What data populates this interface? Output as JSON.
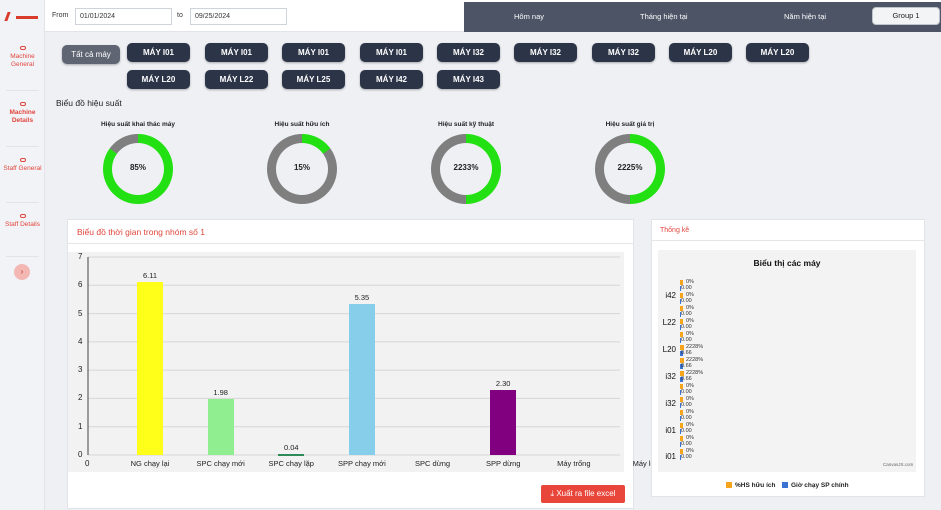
{
  "colors": {
    "accent": "#e0463c",
    "dark_button": "#2c3448",
    "period_bar": "#4d5466",
    "gauge_green": "#22e012",
    "gauge_gray": "#7f7f7f"
  },
  "header": {
    "from_label": "From",
    "from_value": "01/01/2024",
    "to_label": "to",
    "to_value": "09/25/2024",
    "periods": [
      "Hôm nay",
      "Tháng hiện tại",
      "Năm hiện tại"
    ],
    "group": "Group 1"
  },
  "sidebar": {
    "items": [
      {
        "icon": "gear-icon",
        "label": "Machine General"
      },
      {
        "icon": "gear-icon",
        "label": "Machine Details"
      },
      {
        "icon": "person-icon",
        "label": "Staff General"
      },
      {
        "icon": "person-icon",
        "label": "Staff Details"
      }
    ],
    "toggle_icon": "chevron-right-icon",
    "toggle_glyph": "›"
  },
  "machines": {
    "all_label": "Tất cả máy",
    "row1": [
      "MÁY I01",
      "MÁY I01",
      "MÁY I01",
      "MÁY I01",
      "MÁY I32",
      "MÁY I32",
      "MÁY I32",
      "MÁY L20",
      "MÁY L20"
    ],
    "row2": [
      "MÁY L20",
      "MÁY L22",
      "MÁY L25",
      "MÁY I42",
      "MÁY I43"
    ]
  },
  "performance": {
    "title": "Biểu đồ hiệu suất",
    "gauges": [
      {
        "label": "Hiệu suất khai thác máy",
        "value_text": "85%",
        "fill": 0.85
      },
      {
        "label": "Hiệu suất hữu ích",
        "value_text": "15%",
        "fill": 0.15
      },
      {
        "label": "Hiệu suất kỹ thuật",
        "value_text": "2233%",
        "fill": 0.5
      },
      {
        "label": "Hiệu suất giá trị",
        "value_text": "2225%",
        "fill": 0.5
      }
    ]
  },
  "time_chart": {
    "title": "Biểu đồ thời gian trong nhóm số 1",
    "export_label": "Xuất ra file excel",
    "export_icon": "download-icon"
  },
  "stats": {
    "title": "Thống kê",
    "credit": "CanvasJS.com",
    "legend": [
      "%HS hữu ích",
      "Giờ chạy SP chính"
    ]
  },
  "chart_data": [
    {
      "type": "bar",
      "categories": [
        "NG chạy lại",
        "SPC chạy mới",
        "SPC chạy lặp",
        "SPP chạy mới",
        "SPC dừng",
        "SPP dừng",
        "Máy trống",
        "Máy lỗi"
      ],
      "values": [
        6.11,
        1.98,
        0.04,
        5.35,
        null,
        2.3,
        null,
        null
      ],
      "value_labels": [
        "6.11",
        "1.98",
        "0.04",
        "5.35",
        "",
        "2.30",
        "",
        ""
      ],
      "colors": [
        "#ffff1a",
        "#90ee90",
        "#2e8b57",
        "#87ceeb",
        "#cccccc",
        "#800080",
        "#cccccc",
        "#cccccc"
      ],
      "yticks": [
        "0",
        "1",
        "2",
        "3",
        "4",
        "5",
        "6",
        "7"
      ],
      "x_zero_label": "0",
      "ylim": [
        0,
        7
      ],
      "grid": true
    },
    {
      "type": "bar",
      "orientation": "horizontal",
      "title": "Biểu thị các máy",
      "categories": [
        "i01",
        "i01",
        "i32",
        "i32",
        "L20",
        "L22",
        "i42"
      ],
      "series": [
        {
          "name": "%HS hữu ích",
          "color": "#f7a51c",
          "labels": [
            "0%",
            "0%",
            "0%",
            "2228%",
            "2228%",
            "0%",
            "0%"
          ]
        },
        {
          "name": "Giờ chạy SP chính",
          "color": "#3b73d4",
          "labels": [
            "0.00",
            "0.00",
            "0.00",
            "0.66",
            "0.66",
            "0.00",
            "0.00"
          ]
        }
      ],
      "extra_rows": [
        {
          "pct": "0%",
          "val": "0.00"
        },
        {
          "pct": "0%",
          "val": "0.00"
        },
        {
          "pct": "0%",
          "val": "0.00"
        },
        {
          "pct": "2228%",
          "val": "0.66"
        },
        {
          "pct": "0%",
          "val": "0.00"
        },
        {
          "pct": "0%",
          "val": "0.00"
        },
        {
          "pct": "0%",
          "val": "0.00"
        }
      ]
    }
  ]
}
